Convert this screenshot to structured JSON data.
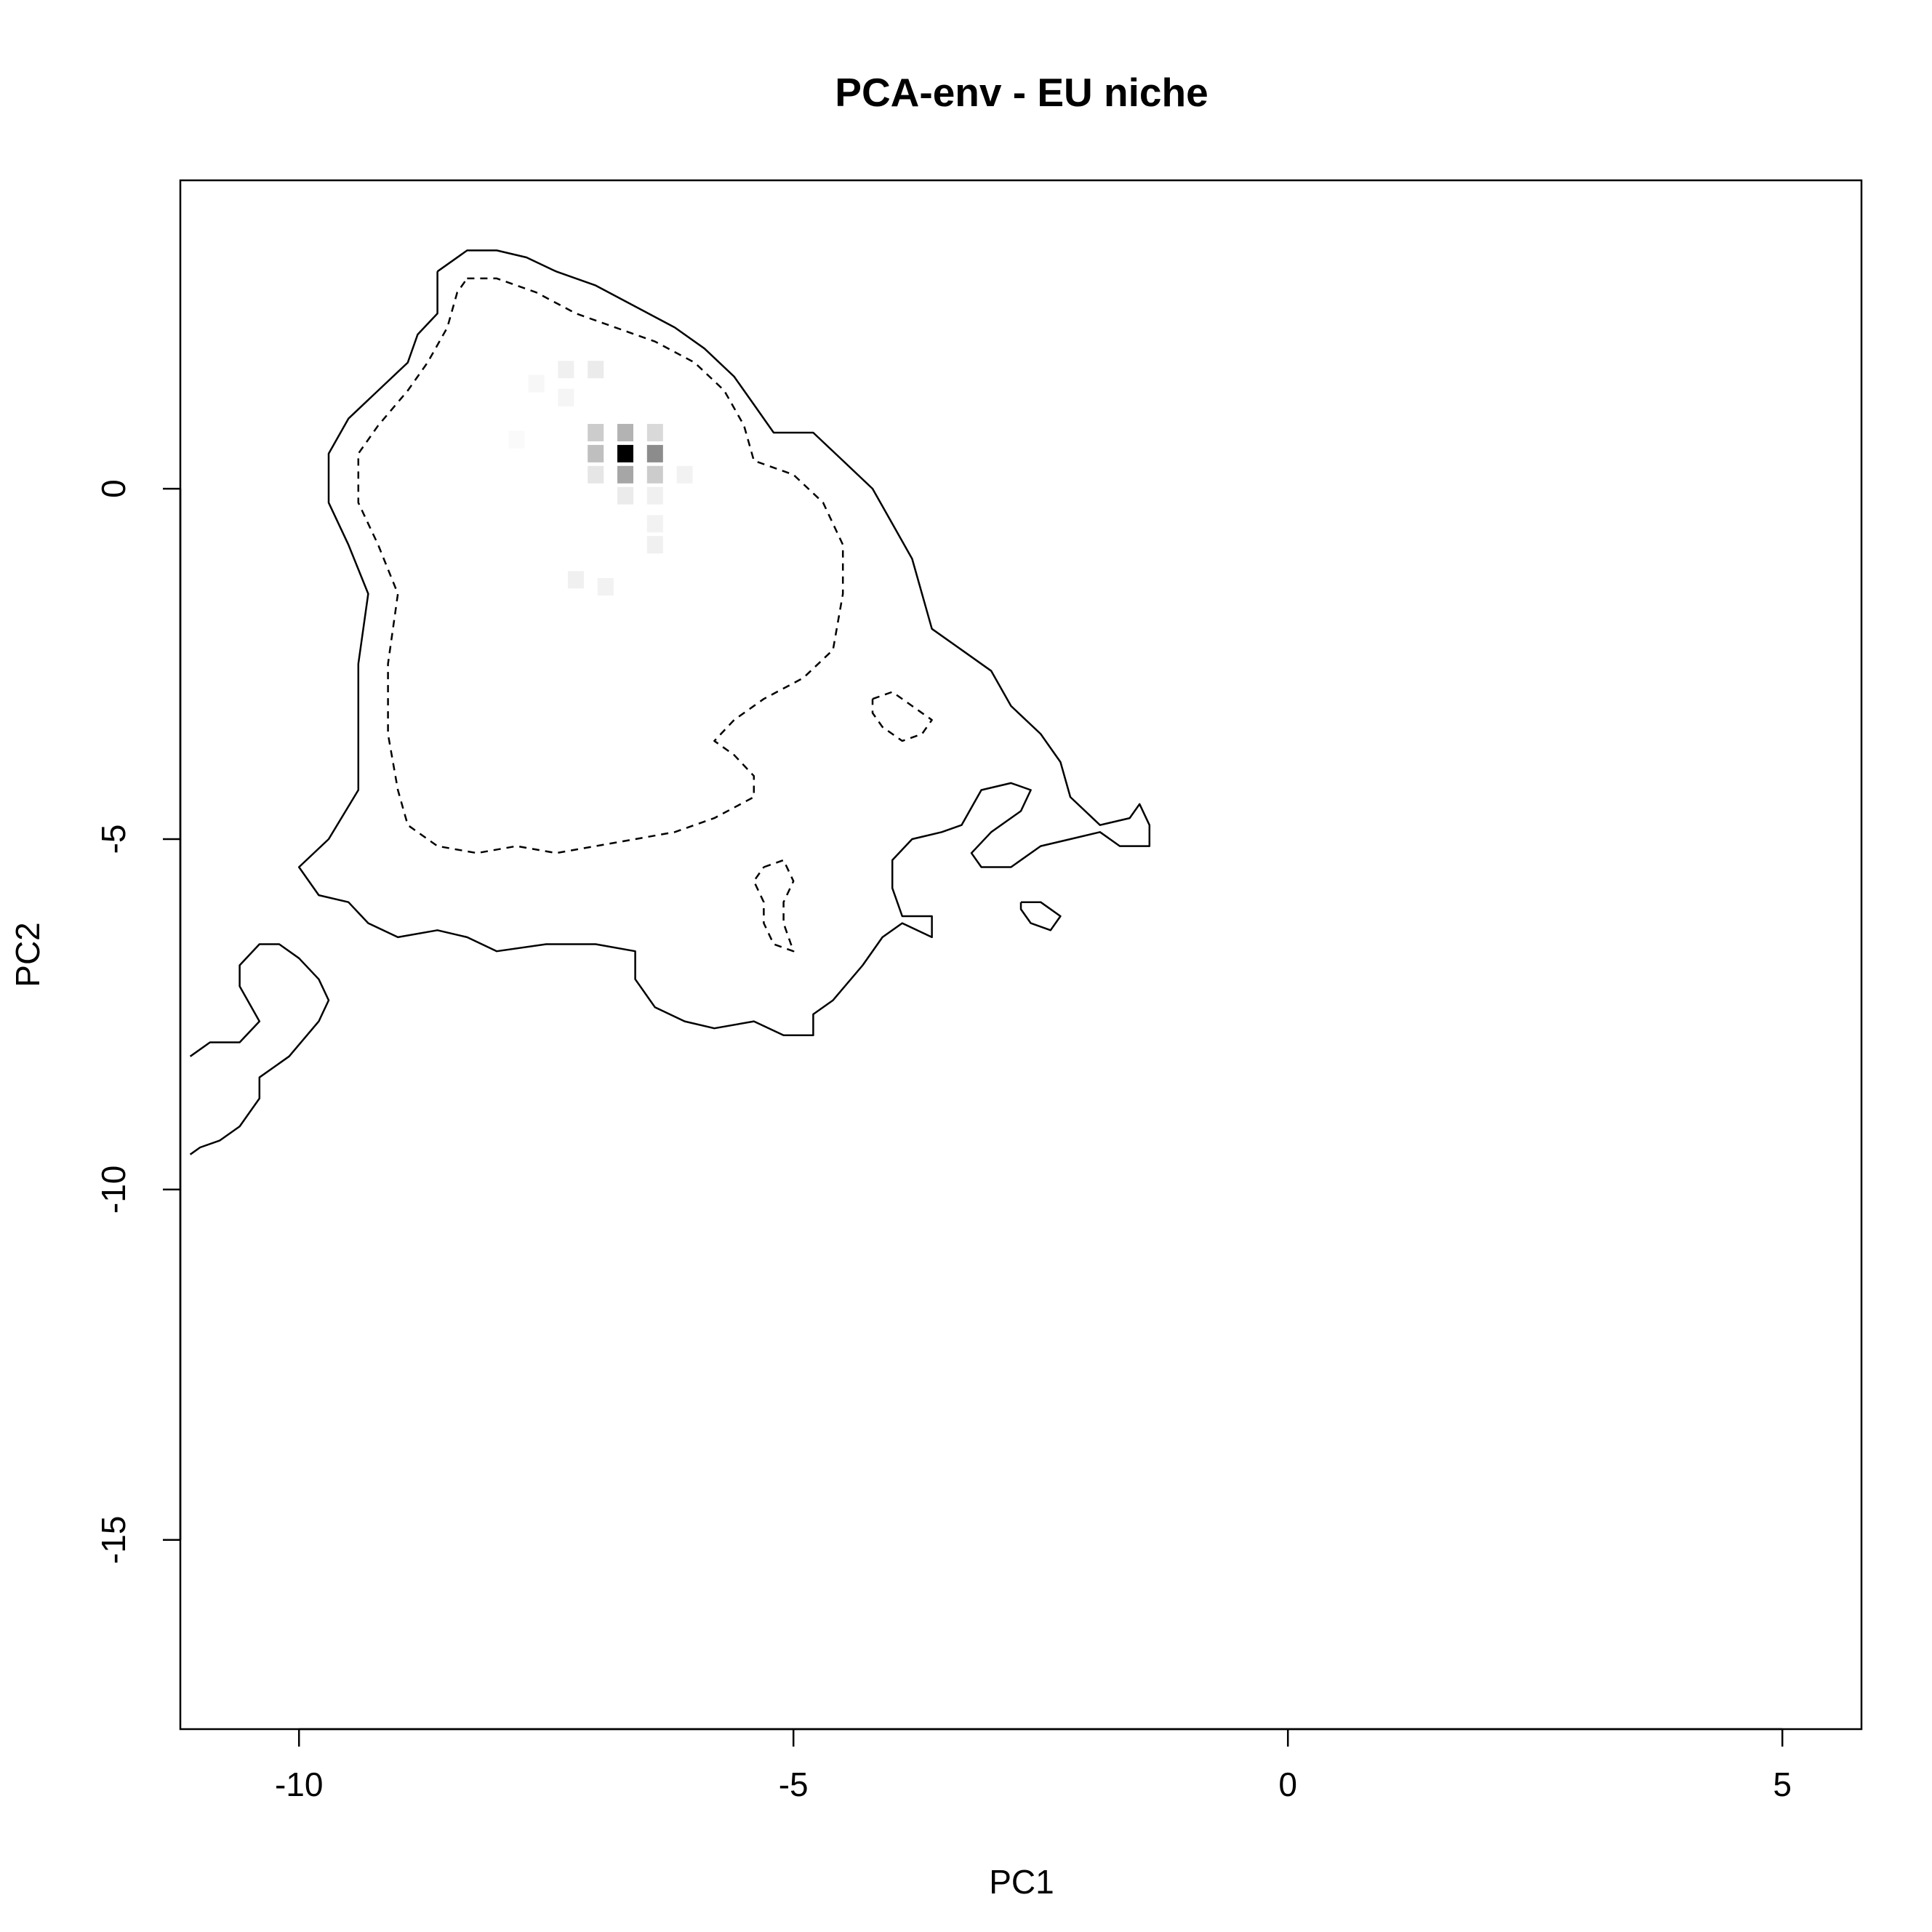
{
  "chart_data": {
    "type": "heatmap",
    "title": "PCA-env - EU niche",
    "xlabel": "PC1",
    "ylabel": "PC2",
    "xlim": [
      -11.2,
      5.8
    ],
    "ylim": [
      -17.7,
      4.4
    ],
    "x_ticks": [
      -10,
      -5,
      0,
      5
    ],
    "y_ticks": [
      0,
      -5,
      -10,
      -15
    ],
    "x_tick_labels": [
      "-10",
      "-5",
      "0",
      "5"
    ],
    "y_tick_labels": [
      "0",
      "-5",
      "-10",
      "-15"
    ],
    "grid": false,
    "legend": "none",
    "colors": {
      "foreground": "#000000",
      "background": "#ffffff"
    },
    "density_cells": [
      {
        "x": -7.3,
        "y": 1.7,
        "value": 0.06
      },
      {
        "x": -7.0,
        "y": 1.7,
        "value": 0.08
      },
      {
        "x": -7.3,
        "y": 1.3,
        "value": 0.04
      },
      {
        "x": -7.6,
        "y": 1.5,
        "value": 0.03
      },
      {
        "x": -7.0,
        "y": 0.8,
        "value": 0.2
      },
      {
        "x": -6.7,
        "y": 0.8,
        "value": 0.3
      },
      {
        "x": -6.4,
        "y": 0.8,
        "value": 0.15
      },
      {
        "x": -7.0,
        "y": 0.5,
        "value": 0.25
      },
      {
        "x": -6.7,
        "y": 0.5,
        "value": 1.0
      },
      {
        "x": -6.4,
        "y": 0.5,
        "value": 0.45
      },
      {
        "x": -7.0,
        "y": 0.2,
        "value": 0.1
      },
      {
        "x": -6.7,
        "y": 0.2,
        "value": 0.35
      },
      {
        "x": -6.4,
        "y": 0.2,
        "value": 0.2
      },
      {
        "x": -6.1,
        "y": 0.2,
        "value": 0.05
      },
      {
        "x": -6.7,
        "y": -0.1,
        "value": 0.08
      },
      {
        "x": -6.4,
        "y": -0.1,
        "value": 0.06
      },
      {
        "x": -6.4,
        "y": -0.5,
        "value": 0.05
      },
      {
        "x": -6.4,
        "y": -0.8,
        "value": 0.06
      },
      {
        "x": -7.2,
        "y": -1.3,
        "value": 0.06
      },
      {
        "x": -6.9,
        "y": -1.4,
        "value": 0.05
      },
      {
        "x": -7.8,
        "y": 0.7,
        "value": 0.02
      }
    ],
    "contours": [
      {
        "level": "outer",
        "style": "solid",
        "points": [
          [
            -8.6,
            3.1
          ],
          [
            -8.3,
            3.4
          ],
          [
            -8.0,
            3.4
          ],
          [
            -7.7,
            3.3
          ],
          [
            -7.4,
            3.1
          ],
          [
            -7.0,
            2.9
          ],
          [
            -6.6,
            2.6
          ],
          [
            -6.2,
            2.3
          ],
          [
            -5.9,
            2.0
          ],
          [
            -5.6,
            1.6
          ],
          [
            -5.4,
            1.2
          ],
          [
            -5.2,
            0.8
          ],
          [
            -4.8,
            0.8
          ],
          [
            -4.5,
            0.4
          ],
          [
            -4.2,
            0.0
          ],
          [
            -4.0,
            -0.5
          ],
          [
            -3.8,
            -1.0
          ],
          [
            -3.7,
            -1.5
          ],
          [
            -3.6,
            -2.0
          ],
          [
            -3.3,
            -2.3
          ],
          [
            -3.0,
            -2.6
          ],
          [
            -2.8,
            -3.1
          ],
          [
            -2.5,
            -3.5
          ],
          [
            -2.3,
            -3.9
          ],
          [
            -2.2,
            -4.4
          ],
          [
            -1.9,
            -4.8
          ],
          [
            -1.6,
            -4.7
          ],
          [
            -1.5,
            -4.5
          ],
          [
            -1.4,
            -4.8
          ],
          [
            -1.4,
            -5.1
          ],
          [
            -1.7,
            -5.1
          ],
          [
            -1.9,
            -4.9
          ],
          [
            -2.2,
            -5.0
          ],
          [
            -2.5,
            -5.1
          ],
          [
            -2.8,
            -5.4
          ],
          [
            -3.1,
            -5.4
          ],
          [
            -3.2,
            -5.2
          ],
          [
            -3.0,
            -4.9
          ],
          [
            -2.7,
            -4.6
          ],
          [
            -2.6,
            -4.3
          ],
          [
            -2.8,
            -4.2
          ],
          [
            -3.1,
            -4.3
          ],
          [
            -3.3,
            -4.8
          ],
          [
            -3.5,
            -4.9
          ],
          [
            -3.8,
            -5.0
          ],
          [
            -4.0,
            -5.3
          ],
          [
            -4.0,
            -5.7
          ],
          [
            -3.9,
            -6.1
          ],
          [
            -3.6,
            -6.1
          ],
          [
            -3.6,
            -6.4
          ],
          [
            -3.9,
            -6.2
          ],
          [
            -4.1,
            -6.4
          ],
          [
            -4.3,
            -6.8
          ],
          [
            -4.6,
            -7.3
          ],
          [
            -4.8,
            -7.5
          ],
          [
            -4.8,
            -7.8
          ],
          [
            -5.1,
            -7.8
          ],
          [
            -5.4,
            -7.6
          ],
          [
            -5.8,
            -7.7
          ],
          [
            -6.1,
            -7.6
          ],
          [
            -6.4,
            -7.4
          ],
          [
            -6.6,
            -7.0
          ],
          [
            -6.6,
            -6.6
          ],
          [
            -7.0,
            -6.5
          ],
          [
            -7.5,
            -6.5
          ],
          [
            -8.0,
            -6.6
          ],
          [
            -8.3,
            -6.4
          ],
          [
            -8.6,
            -6.3
          ],
          [
            -9.0,
            -6.4
          ],
          [
            -9.3,
            -6.2
          ],
          [
            -9.5,
            -5.9
          ],
          [
            -9.8,
            -5.8
          ],
          [
            -10.0,
            -5.4
          ],
          [
            -9.7,
            -5.0
          ],
          [
            -9.4,
            -4.3
          ],
          [
            -9.4,
            -3.5
          ],
          [
            -9.4,
            -2.5
          ],
          [
            -9.3,
            -1.5
          ],
          [
            -9.5,
            -0.8
          ],
          [
            -9.7,
            -0.2
          ],
          [
            -9.7,
            0.5
          ],
          [
            -9.5,
            1.0
          ],
          [
            -9.2,
            1.4
          ],
          [
            -8.9,
            1.8
          ],
          [
            -8.8,
            2.2
          ],
          [
            -8.6,
            2.5
          ],
          [
            -8.6,
            3.1
          ]
        ]
      },
      {
        "level": "outer",
        "style": "solid",
        "points": [
          [
            -11.1,
            -8.1
          ],
          [
            -10.9,
            -7.9
          ],
          [
            -10.6,
            -7.9
          ],
          [
            -10.4,
            -7.6
          ],
          [
            -10.6,
            -7.1
          ],
          [
            -10.6,
            -6.8
          ],
          [
            -10.4,
            -6.5
          ],
          [
            -10.2,
            -6.5
          ],
          [
            -10.0,
            -6.7
          ],
          [
            -9.8,
            -7.0
          ],
          [
            -9.7,
            -7.3
          ],
          [
            -9.8,
            -7.6
          ],
          [
            -10.1,
            -8.1
          ],
          [
            -10.4,
            -8.4
          ],
          [
            -10.4,
            -8.7
          ],
          [
            -10.6,
            -9.1
          ],
          [
            -10.8,
            -9.3
          ],
          [
            -11.0,
            -9.4
          ],
          [
            -11.1,
            -9.5
          ]
        ]
      },
      {
        "level": "outer",
        "style": "solid",
        "points": [
          [
            -2.7,
            -5.9
          ],
          [
            -2.5,
            -5.9
          ],
          [
            -2.3,
            -6.1
          ],
          [
            -2.4,
            -6.3
          ],
          [
            -2.6,
            -6.2
          ],
          [
            -2.7,
            -6.0
          ],
          [
            -2.7,
            -5.9
          ]
        ]
      },
      {
        "level": "inner",
        "style": "dashed",
        "points": [
          [
            -8.3,
            3.0
          ],
          [
            -8.0,
            3.0
          ],
          [
            -7.6,
            2.8
          ],
          [
            -7.2,
            2.5
          ],
          [
            -6.8,
            2.3
          ],
          [
            -6.4,
            2.1
          ],
          [
            -6.0,
            1.8
          ],
          [
            -5.7,
            1.4
          ],
          [
            -5.5,
            0.9
          ],
          [
            -5.4,
            0.4
          ],
          [
            -5.0,
            0.2
          ],
          [
            -4.7,
            -0.2
          ],
          [
            -4.5,
            -0.8
          ],
          [
            -4.5,
            -1.5
          ],
          [
            -4.6,
            -2.3
          ],
          [
            -4.9,
            -2.7
          ],
          [
            -5.3,
            -3.0
          ],
          [
            -5.6,
            -3.3
          ],
          [
            -5.8,
            -3.6
          ],
          [
            -5.6,
            -3.8
          ],
          [
            -5.4,
            -4.1
          ],
          [
            -5.4,
            -4.4
          ],
          [
            -5.8,
            -4.7
          ],
          [
            -6.2,
            -4.9
          ],
          [
            -6.6,
            -5.0
          ],
          [
            -7.0,
            -5.1
          ],
          [
            -7.4,
            -5.2
          ],
          [
            -7.8,
            -5.1
          ],
          [
            -8.2,
            -5.2
          ],
          [
            -8.6,
            -5.1
          ],
          [
            -8.9,
            -4.8
          ],
          [
            -9.0,
            -4.3
          ],
          [
            -9.1,
            -3.5
          ],
          [
            -9.1,
            -2.5
          ],
          [
            -9.0,
            -1.5
          ],
          [
            -9.2,
            -0.8
          ],
          [
            -9.4,
            -0.2
          ],
          [
            -9.4,
            0.5
          ],
          [
            -9.2,
            0.9
          ],
          [
            -8.9,
            1.4
          ],
          [
            -8.7,
            1.8
          ],
          [
            -8.5,
            2.3
          ],
          [
            -8.4,
            2.8
          ],
          [
            -8.3,
            3.0
          ]
        ]
      },
      {
        "level": "inner",
        "style": "dashed",
        "points": [
          [
            -4.2,
            -3.0
          ],
          [
            -4.0,
            -2.9
          ],
          [
            -3.8,
            -3.1
          ],
          [
            -3.6,
            -3.3
          ],
          [
            -3.7,
            -3.5
          ],
          [
            -3.9,
            -3.6
          ],
          [
            -4.1,
            -3.4
          ],
          [
            -4.2,
            -3.2
          ],
          [
            -4.2,
            -3.0
          ]
        ]
      },
      {
        "level": "inner",
        "style": "dashed",
        "points": [
          [
            -5.3,
            -5.4
          ],
          [
            -5.1,
            -5.3
          ],
          [
            -5.0,
            -5.6
          ],
          [
            -5.1,
            -5.9
          ],
          [
            -5.1,
            -6.2
          ],
          [
            -5.0,
            -6.6
          ],
          [
            -5.2,
            -6.5
          ],
          [
            -5.3,
            -6.2
          ],
          [
            -5.3,
            -5.9
          ],
          [
            -5.4,
            -5.6
          ],
          [
            -5.3,
            -5.4
          ]
        ]
      }
    ]
  }
}
